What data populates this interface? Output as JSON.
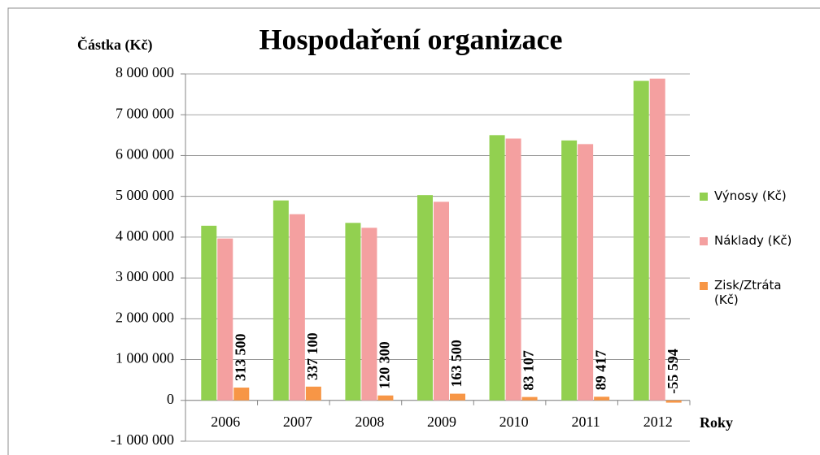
{
  "chart_data": {
    "type": "bar",
    "title": "Hospodaření organizace",
    "y_label": "Částka (Kč)",
    "x_label": "Roky",
    "categories": [
      "2006",
      "2007",
      "2008",
      "2009",
      "2010",
      "2011",
      "2012"
    ],
    "series": [
      {
        "name": "Výnosy (Kč)",
        "color": "#92d050",
        "values": [
          4280000,
          4900000,
          4350000,
          5030000,
          6500000,
          6370000,
          7830000
        ]
      },
      {
        "name": "Náklady (Kč)",
        "color": "#f4a0a0",
        "values": [
          3966500,
          4562900,
          4229700,
          4866500,
          6416893,
          6280583,
          7885594
        ]
      },
      {
        "name": "Zisk/Ztráta (Kč)",
        "color": "#f79646",
        "values": [
          313500,
          337100,
          120300,
          163500,
          83107,
          89417,
          -55594
        ],
        "value_labels": [
          "313 500",
          "337 100",
          "120 300",
          "163 500",
          "83 107",
          "89 417",
          "-55 594"
        ]
      }
    ],
    "ylim": [
      -1000000,
      8000000
    ],
    "yticks": [
      {
        "value": -1000000,
        "label": "-1 000 000"
      },
      0,
      {
        "value": 1000000,
        "label": "1 000 000"
      },
      {
        "value": 2000000,
        "label": "2 000 000"
      },
      {
        "value": 3000000,
        "label": "3 000 000"
      },
      {
        "value": 4000000,
        "label": "4 000 000"
      },
      {
        "value": 5000000,
        "label": "5 000 000"
      },
      {
        "value": 6000000,
        "label": "6 000 000"
      },
      {
        "value": 7000000,
        "label": "7 000 000"
      },
      {
        "value": 8000000,
        "label": "8 000 000"
      }
    ],
    "grid": true,
    "legend": "right"
  }
}
